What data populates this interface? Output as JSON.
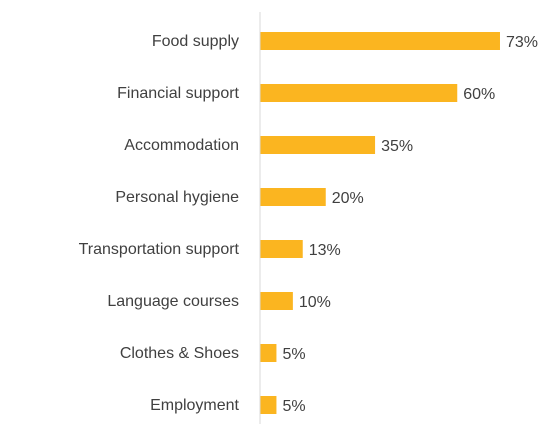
{
  "chart_data": {
    "type": "barh",
    "categories": [
      "Food supply",
      "Financial support",
      "Accommodation",
      "Personal hygiene",
      "Transportation support",
      "Language courses",
      "Clothes & Shoes",
      "Employment"
    ],
    "values": [
      73,
      60,
      35,
      20,
      13,
      10,
      5,
      5
    ],
    "value_labels": [
      "73%",
      "60%",
      "35%",
      "20%",
      "13%",
      "10%",
      "5%",
      "5%"
    ],
    "color": "#fbb520",
    "xlim": [
      0,
      80
    ]
  }
}
